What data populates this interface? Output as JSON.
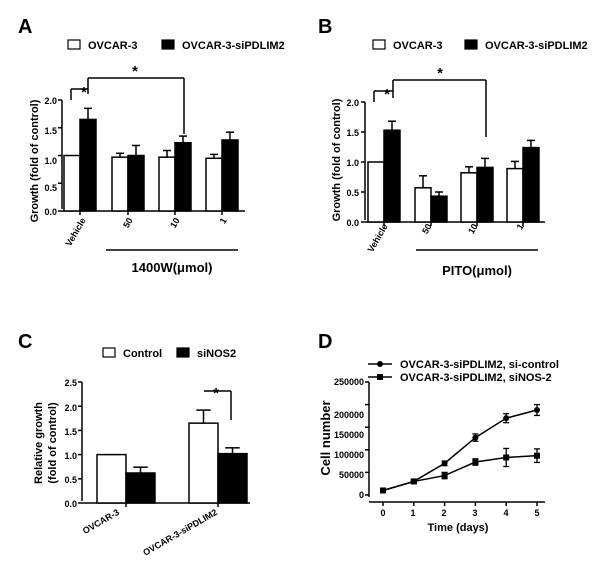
{
  "panels": {
    "A": "A",
    "B": "B",
    "C": "C",
    "D": "D"
  },
  "chart_data": [
    {
      "type": "bar",
      "panel": "A",
      "categories": [
        "Vehicle",
        "50",
        "10",
        "1"
      ],
      "series": [
        {
          "name": "OVCAR-3",
          "color": "#ffffff",
          "values": [
            1.0,
            0.97,
            0.97,
            0.95
          ],
          "errors": [
            0.0,
            0.07,
            0.12,
            0.07
          ]
        },
        {
          "name": "OVCAR-3-siPDLIM2",
          "color": "#000000",
          "values": [
            1.65,
            1.0,
            1.23,
            1.28
          ],
          "errors": [
            0.2,
            0.18,
            0.12,
            0.14
          ]
        }
      ],
      "ylabel": "Growth (fold of control)",
      "ylim": [
        0,
        2.0
      ],
      "yticks": [
        "0.0",
        "0.5",
        "1.0",
        "1.5",
        "2.0"
      ],
      "group_label": "1400W(μmol)",
      "significance": [
        "*",
        "*"
      ]
    },
    {
      "type": "bar",
      "panel": "B",
      "categories": [
        "Vehicle",
        "50",
        "10",
        "1"
      ],
      "series": [
        {
          "name": "OVCAR-3",
          "color": "#ffffff",
          "values": [
            1.0,
            0.57,
            0.82,
            0.89
          ],
          "errors": [
            0.0,
            0.2,
            0.1,
            0.12
          ]
        },
        {
          "name": "OVCAR-3-siPDLIM2",
          "color": "#000000",
          "values": [
            1.53,
            0.43,
            0.91,
            1.24
          ],
          "errors": [
            0.15,
            0.07,
            0.15,
            0.12
          ]
        }
      ],
      "ylabel": "Growth (fold of control)",
      "ylim": [
        0,
        2.0
      ],
      "yticks": [
        "0.0",
        "0.5",
        "1.0",
        "1.5",
        "2.0"
      ],
      "group_label": "PITO(μmol)",
      "significance": [
        "*",
        "*"
      ]
    },
    {
      "type": "bar",
      "panel": "C",
      "categories": [
        "OVCAR-3",
        "OVCAR-3-siPDLIM2"
      ],
      "series": [
        {
          "name": "Control",
          "color": "#ffffff",
          "values": [
            1.0,
            1.65
          ],
          "errors": [
            0.0,
            0.27
          ]
        },
        {
          "name": "siNOS2",
          "color": "#000000",
          "values": [
            0.62,
            1.02
          ],
          "errors": [
            0.12,
            0.12
          ]
        }
      ],
      "ylabel_lines": [
        "Relative growth",
        "(fold of control)"
      ],
      "ylim": [
        0,
        2.5
      ],
      "yticks": [
        "0.0",
        "0.5",
        "1.0",
        "1.5",
        "2.0",
        "2.5"
      ],
      "significance": [
        "*"
      ]
    },
    {
      "type": "line",
      "panel": "D",
      "x": [
        0,
        1,
        2,
        3,
        4,
        5
      ],
      "xticks": [
        "0",
        "1",
        "2",
        "3",
        "4",
        "5"
      ],
      "series": [
        {
          "name": "OVCAR-3-siPDLIM2, si-control",
          "marker": "circle",
          "values": [
            10000,
            30000,
            70000,
            127000,
            170000,
            188000
          ],
          "errors": [
            1000,
            3000,
            5000,
            8000,
            10000,
            12000
          ]
        },
        {
          "name": "OVCAR-3-siPDLIM2, siNOS-2",
          "marker": "square",
          "values": [
            10000,
            30000,
            43000,
            73000,
            83000,
            87000
          ],
          "errors": [
            1000,
            3000,
            7000,
            7000,
            20000,
            15000
          ]
        }
      ],
      "xlabel": "Time (days)",
      "ylabel": "Cell number",
      "xlim": [
        0,
        5
      ],
      "ylim": [
        0,
        250000
      ],
      "yticks": [
        "0",
        "50000",
        "100000",
        "150000",
        "200000",
        "250000"
      ]
    }
  ]
}
